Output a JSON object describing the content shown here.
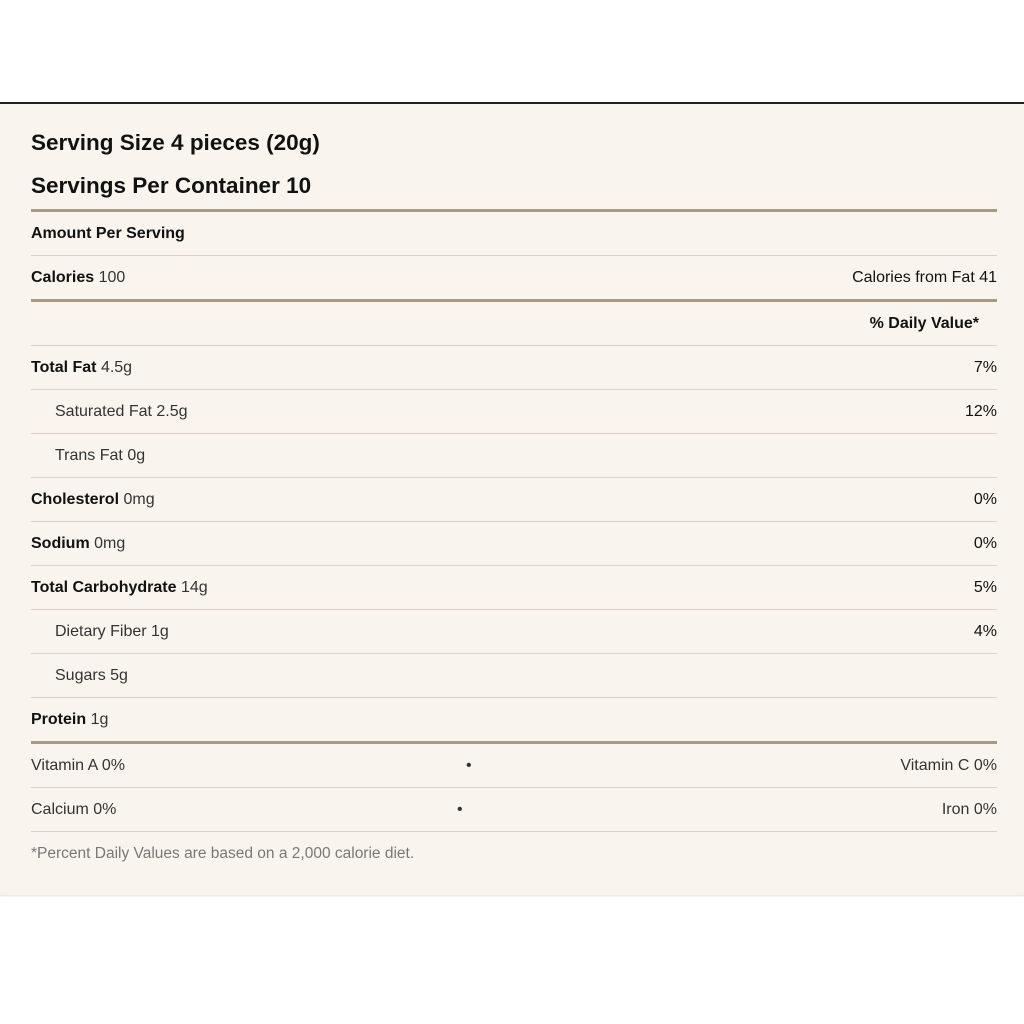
{
  "serving_size": "Serving Size 4 pieces (20g)",
  "servings_per_container": "Servings Per Container 10",
  "amount_per_serving": "Amount Per Serving",
  "calories": {
    "label": "Calories",
    "value": "100",
    "from_fat": "Calories from Fat 41"
  },
  "daily_value_header": "% Daily Value*",
  "nutrients": [
    {
      "label": "Total Fat",
      "amount": "4.5g",
      "dv": "7%"
    },
    {
      "label": "Saturated Fat",
      "amount": "2.5g",
      "dv": "12%"
    },
    {
      "label": "Trans Fat",
      "amount": "0g",
      "dv": ""
    },
    {
      "label": "Cholesterol",
      "amount": "0mg",
      "dv": "0%"
    },
    {
      "label": "Sodium",
      "amount": "0mg",
      "dv": "0%"
    },
    {
      "label": "Total Carbohydrate",
      "amount": "14g",
      "dv": "5%"
    },
    {
      "label": "Dietary Fiber",
      "amount": "1g",
      "dv": "4%"
    },
    {
      "label": "Sugars",
      "amount": "5g",
      "dv": ""
    },
    {
      "label": "Protein",
      "amount": "1g",
      "dv": ""
    }
  ],
  "vitamins": [
    {
      "left": "Vitamin A 0%",
      "sep": "•",
      "right": "Vitamin C 0%"
    },
    {
      "left": "Calcium 0%",
      "sep": "•",
      "right": "Iron 0%"
    }
  ],
  "footnote": "*Percent Daily Values are based on a 2,000 calorie diet."
}
